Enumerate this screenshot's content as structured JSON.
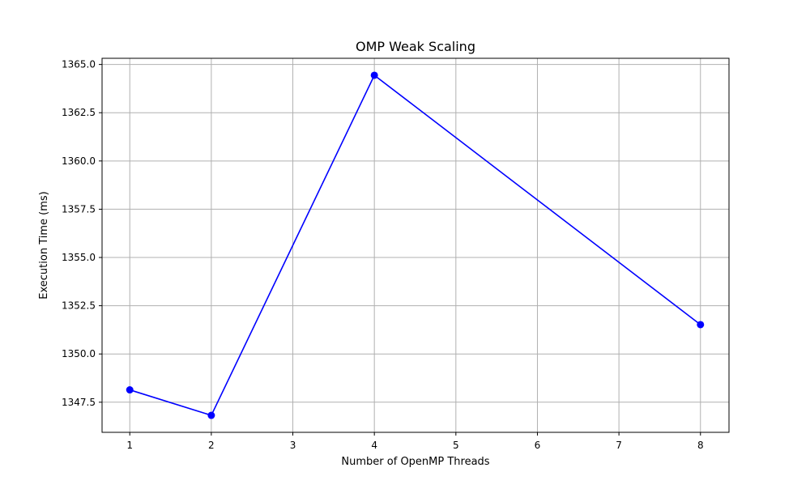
{
  "chart_data": {
    "type": "line",
    "title": "OMP Weak Scaling",
    "xlabel": "Number of OpenMP Threads",
    "ylabel": "Execution Time (ms)",
    "x": [
      1,
      2,
      4,
      8
    ],
    "series": [
      {
        "values": [
          1348.14,
          1346.82,
          1364.44,
          1351.52
        ],
        "color": "#0000ff",
        "marker": "circle"
      }
    ],
    "xlim": [
      0.66,
      8.35
    ],
    "ylim": [
      1345.94,
      1365.32
    ],
    "xticks": [
      1,
      2,
      3,
      4,
      5,
      6,
      7,
      8
    ],
    "xtick_labels": [
      "1",
      "2",
      "3",
      "4",
      "5",
      "6",
      "7",
      "8"
    ],
    "yticks": [
      1347.5,
      1350.0,
      1352.5,
      1355.0,
      1357.5,
      1360.0,
      1362.5,
      1365.0
    ],
    "ytick_labels": [
      "1347.5",
      "1350.0",
      "1352.5",
      "1355.0",
      "1357.5",
      "1360.0",
      "1362.5",
      "1365.0"
    ],
    "grid": true,
    "grid_color": "#b0b0b0",
    "axis_color": "#000000"
  }
}
